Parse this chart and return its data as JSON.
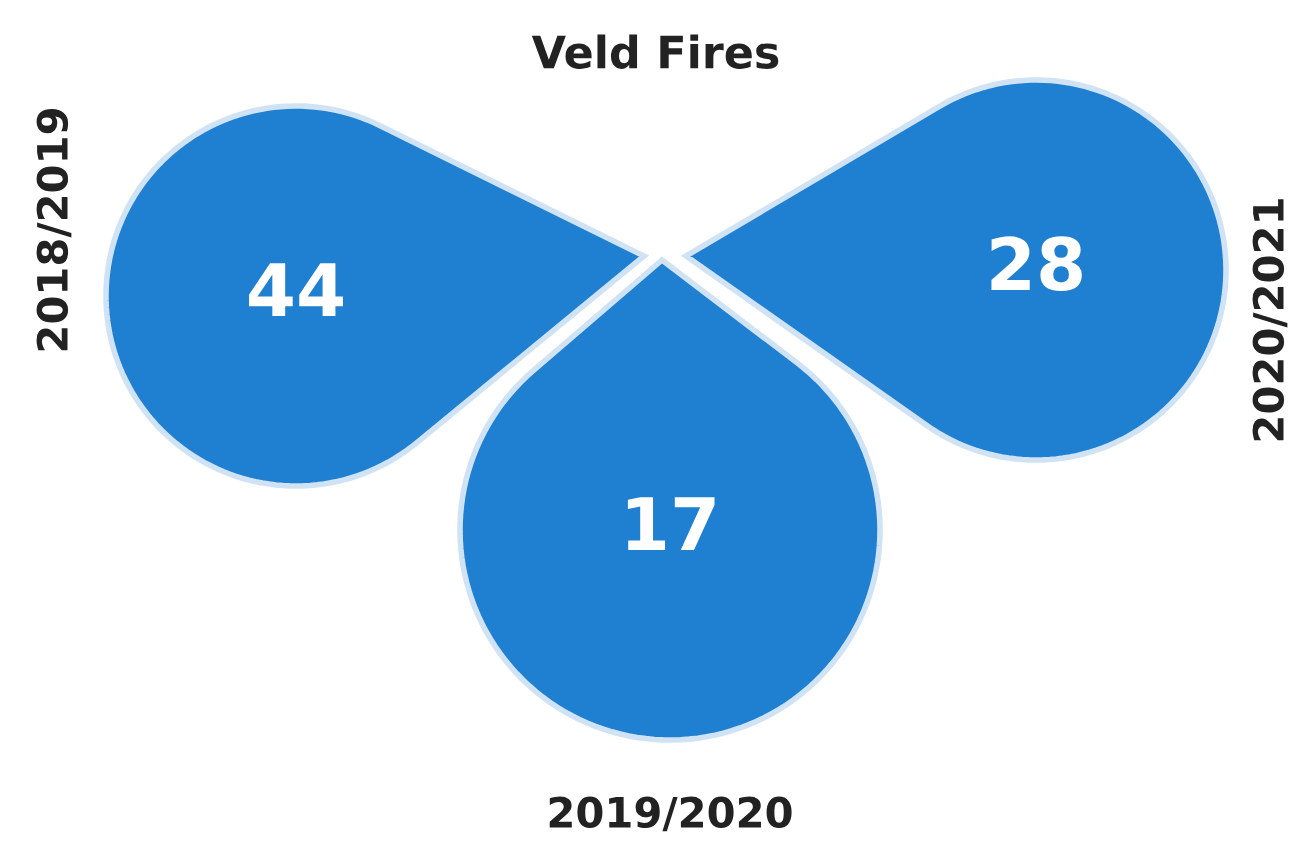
{
  "chart_data": {
    "type": "other",
    "title": "Veld Fires",
    "categories": [
      "2018/2019",
      "2019/2020",
      "2020/2021"
    ],
    "values": [
      44,
      17,
      28
    ],
    "color": "#1f7fd1",
    "data_labels": true
  }
}
